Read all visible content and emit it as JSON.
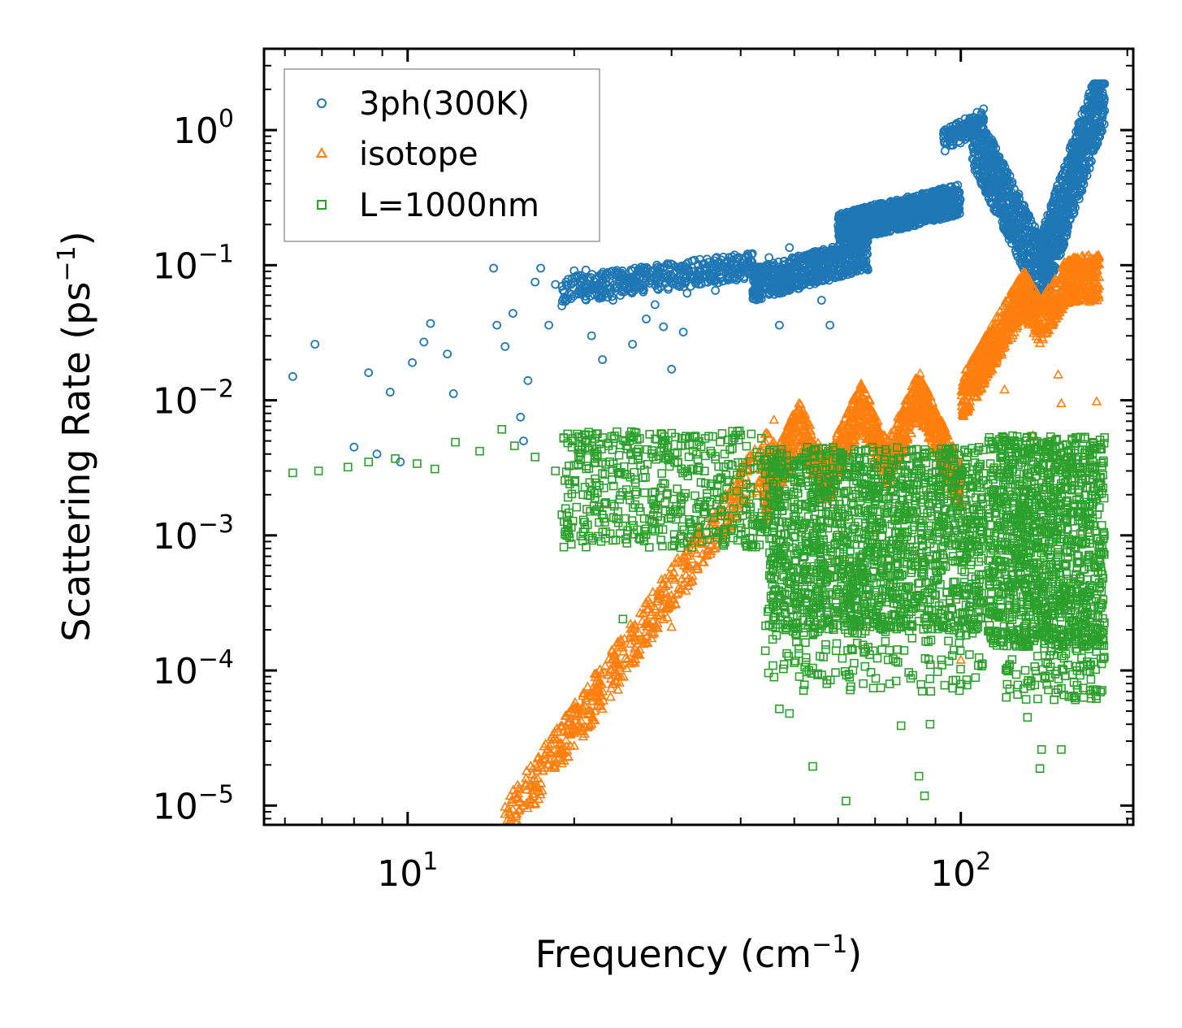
{
  "chart_data": {
    "type": "scatter",
    "title": "",
    "xlabel": "Frequency",
    "xlabel_unit": "(cm",
    "xlabel_unit_exp": "−1",
    "xlabel_unit_close": ")",
    "ylabel": "Scattering Rate",
    "ylabel_unit": "(ps",
    "ylabel_unit_exp": "−1",
    "ylabel_unit_close": ")",
    "xscale": "log",
    "yscale": "log",
    "xlim": [
      5.5,
      205
    ],
    "ylim": [
      7.2e-06,
      4.0
    ],
    "x_ticks": [
      {
        "value": 10,
        "base": "10",
        "exp": "1"
      },
      {
        "value": 100,
        "base": "10",
        "exp": "2"
      }
    ],
    "y_ticks": [
      {
        "value": 1,
        "base": "10",
        "exp": "0"
      },
      {
        "value": 0.1,
        "base": "10",
        "exp": "−1"
      },
      {
        "value": 0.01,
        "base": "10",
        "exp": "−2"
      },
      {
        "value": 0.001,
        "base": "10",
        "exp": "−3"
      },
      {
        "value": 0.0001,
        "base": "10",
        "exp": "−4"
      },
      {
        "value": 1e-05,
        "base": "10",
        "exp": "−5"
      }
    ],
    "legend_position": "top-left",
    "series": [
      {
        "name": "3ph(300K)",
        "marker": "circle",
        "color": "#1f77b4",
        "points": [
          [
            6.2,
            0.015
          ],
          [
            6.8,
            0.026
          ],
          [
            8.0,
            0.0045
          ],
          [
            8.5,
            0.016
          ],
          [
            8.8,
            0.004
          ],
          [
            9.3,
            0.0115
          ],
          [
            9.7,
            0.0035
          ],
          [
            10.2,
            0.019
          ],
          [
            10.7,
            0.027
          ],
          [
            11.0,
            0.037
          ],
          [
            11.8,
            0.022
          ],
          [
            12.1,
            0.0112
          ],
          [
            14.3,
            0.095
          ],
          [
            14.5,
            0.036
          ],
          [
            15.0,
            0.025
          ],
          [
            15.5,
            0.044
          ],
          [
            16.0,
            0.0075
          ],
          [
            16.2,
            0.005
          ],
          [
            16.5,
            0.014
          ],
          [
            17.0,
            0.075
          ],
          [
            17.4,
            0.095
          ],
          [
            18.0,
            0.036
          ],
          [
            18.5,
            0.072
          ],
          [
            19.0,
            0.05
          ],
          [
            20.0,
            0.091
          ],
          [
            21.0,
            0.092
          ],
          [
            21.5,
            0.03
          ],
          [
            22.5,
            0.02
          ],
          [
            23.5,
            0.055
          ],
          [
            24.5,
            0.083
          ],
          [
            25.5,
            0.026
          ],
          [
            27.0,
            0.04
          ],
          [
            28.0,
            0.051
          ],
          [
            29.0,
            0.035
          ],
          [
            30.0,
            0.017
          ],
          [
            31.5,
            0.032
          ],
          [
            32.0,
            0.062
          ],
          [
            33.5,
            0.078
          ],
          [
            35.0,
            0.105
          ],
          [
            36.0,
            0.065
          ],
          [
            37.0,
            0.098
          ],
          [
            38.0,
            0.08
          ],
          [
            39.0,
            0.119
          ],
          [
            40.0,
            0.088
          ],
          [
            42.0,
            0.122
          ],
          [
            43.0,
            0.072
          ],
          [
            45.0,
            0.114
          ],
          [
            47.0,
            0.036
          ],
          [
            49.0,
            0.135
          ],
          [
            52.0,
            0.101
          ],
          [
            56.0,
            0.055
          ],
          [
            58.0,
            0.036
          ],
          [
            60.0,
            0.085
          ],
          [
            62.0,
            0.12
          ]
        ],
        "bands": [
          {
            "x": [
              19.0,
              42.0
            ],
            "y": [
              0.045,
              0.13
            ],
            "n": 420
          },
          {
            "x": [
              42.0,
              68.0
            ],
            "y": [
              0.045,
              0.17
            ],
            "n": 600
          },
          {
            "x": [
              60.0,
              100.0
            ],
            "y": [
              0.12,
              0.42
            ],
            "n": 900
          },
          {
            "x": [
              93.0,
              110.0
            ],
            "y": [
              0.6,
              1.5
            ],
            "n": 120
          },
          {
            "x": [
              105.0,
              145.0
            ],
            "y": [
              0.065,
              0.95
            ],
            "n": 700
          },
          {
            "x": [
              140.0,
              182.0
            ],
            "y": [
              0.09,
              2.2
            ],
            "n": 700
          }
        ]
      },
      {
        "name": "isotope",
        "marker": "triangle",
        "color": "#ff7f0e",
        "points": [
          [
            15.0,
            9.8e-06
          ],
          [
            16.2,
            1e-05
          ],
          [
            16.8,
            1.4e-05
          ],
          [
            19.0,
            2.6e-05
          ],
          [
            21.0,
            3.8e-05
          ],
          [
            22.5,
            5.2e-05
          ],
          [
            24.0,
            7.2e-05
          ],
          [
            30.0,
            0.00021
          ],
          [
            51.0,
            0.0095
          ],
          [
            100.0,
            0.00012
          ],
          [
            120.0,
            0.012
          ],
          [
            135.0,
            0.0055
          ],
          [
            150.0,
            0.0155
          ],
          [
            152.0,
            0.0095
          ],
          [
            176.0,
            0.0098
          ]
        ],
        "bands": [
          {
            "x": [
              15.0,
              46.0
            ],
            "y_fn": "iso_low",
            "n": 600
          },
          {
            "x": [
              44.0,
              100.0
            ],
            "y_fn": "iso_mid",
            "n": 1200
          },
          {
            "x": [
              100.0,
              178.0
            ],
            "y_fn": "iso_high",
            "n": 1000
          }
        ]
      },
      {
        "name": "L=1000nm",
        "marker": "square",
        "color": "#2ca02c",
        "points": [
          [
            6.2,
            0.0029
          ],
          [
            6.9,
            0.003
          ],
          [
            7.8,
            0.0032
          ],
          [
            8.5,
            0.0035
          ],
          [
            9.5,
            0.0037
          ],
          [
            10.4,
            0.0034
          ],
          [
            11.2,
            0.0031
          ],
          [
            12.2,
            0.0049
          ],
          [
            13.5,
            0.0042
          ],
          [
            14.8,
            0.0061
          ],
          [
            15.6,
            0.0046
          ],
          [
            17.0,
            0.0038
          ],
          [
            18.5,
            0.003
          ],
          [
            20.0,
            0.0033
          ],
          [
            22.0,
            0.0038
          ],
          [
            24.0,
            0.0015
          ],
          [
            24.5,
            0.00024
          ],
          [
            26.0,
            0.0011
          ],
          [
            28.0,
            0.0021
          ],
          [
            30.0,
            0.0057
          ],
          [
            32.0,
            0.0009
          ],
          [
            38.0,
            0.0051
          ],
          [
            40.0,
            0.0029
          ],
          [
            47.0,
            5.2e-05
          ],
          [
            49.0,
            4.8e-05
          ],
          [
            54.0,
            1.95e-05
          ],
          [
            62.0,
            1.08e-05
          ],
          [
            78.0,
            3.9e-05
          ],
          [
            84.0,
            1.65e-05
          ],
          [
            86.0,
            1.18e-05
          ],
          [
            88.0,
            4e-05
          ],
          [
            98.0,
            8.5e-05
          ],
          [
            132.0,
            4.5e-05
          ],
          [
            139.0,
            1.88e-05
          ],
          [
            140.0,
            2.6e-05
          ],
          [
            152.0,
            2.6e-05
          ],
          [
            172.0,
            6.7e-05
          ],
          [
            175.0,
            7e-05
          ]
        ],
        "bands": [
          {
            "x": [
              19.0,
              45.0
            ],
            "y": [
              0.0008,
              0.006
            ],
            "n": 500
          },
          {
            "x": [
              45.0,
              110.0
            ],
            "y": [
              0.0002,
              0.0045
            ],
            "n": 1600
          },
          {
            "x": [
              44.0,
              110.0
            ],
            "y": [
              7e-05,
              0.0003
            ],
            "n": 180
          },
          {
            "x": [
              112.0,
              182.0
            ],
            "y": [
              0.00015,
              0.0055
            ],
            "n": 1200
          },
          {
            "x": [
              120.0,
              182.0
            ],
            "y": [
              6e-05,
              0.00022
            ],
            "n": 150
          }
        ]
      }
    ]
  }
}
